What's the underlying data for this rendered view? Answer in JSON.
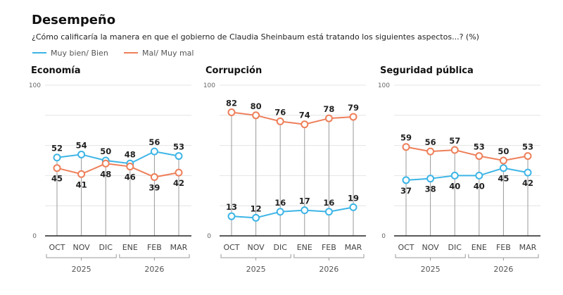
{
  "title": "Desempeño",
  "subtitle": "¿Cómo calificaría la manera en que el gobierno de Claudia Sheinbaum está tratando los siguientes aspectos...? (%)",
  "legend": [
    {
      "name": "Muy bien/ Bien",
      "color": "#3db5e6"
    },
    {
      "name": "Mal/ Muy mal",
      "color": "#ee7f5a"
    }
  ],
  "years": [
    "2025",
    "2026"
  ],
  "chart_data": [
    {
      "type": "line",
      "title": "Economía",
      "categories": [
        "OCT",
        "NOV",
        "DIC",
        "ENE",
        "FEB",
        "MAR"
      ],
      "ylim": [
        0,
        100
      ],
      "yticks": [
        "0",
        "100"
      ],
      "grid": true,
      "series": [
        {
          "name": "Muy bien/ Bien",
          "values": [
            52,
            54,
            50,
            48,
            56,
            53
          ]
        },
        {
          "name": "Mal/ Muy mal",
          "values": [
            45,
            41,
            48,
            46,
            39,
            42
          ]
        }
      ]
    },
    {
      "type": "line",
      "title": "Corrupción",
      "categories": [
        "OCT",
        "NOV",
        "DIC",
        "ENE",
        "FEB",
        "MAR"
      ],
      "ylim": [
        0,
        100
      ],
      "yticks": [
        "0",
        "100"
      ],
      "grid": true,
      "series": [
        {
          "name": "Muy bien/ Bien",
          "values": [
            13,
            12,
            16,
            17,
            16,
            19
          ]
        },
        {
          "name": "Mal/ Muy mal",
          "values": [
            82,
            80,
            76,
            74,
            78,
            79
          ]
        }
      ]
    },
    {
      "type": "line",
      "title": "Seguridad pública",
      "categories": [
        "OCT",
        "NOV",
        "DIC",
        "ENE",
        "FEB",
        "MAR"
      ],
      "ylim": [
        0,
        100
      ],
      "yticks": [
        "0",
        "100"
      ],
      "grid": true,
      "series": [
        {
          "name": "Muy bien/ Bien",
          "values": [
            37,
            38,
            40,
            40,
            45,
            42
          ]
        },
        {
          "name": "Mal/ Muy mal",
          "values": [
            59,
            56,
            57,
            53,
            50,
            53
          ]
        }
      ]
    }
  ]
}
